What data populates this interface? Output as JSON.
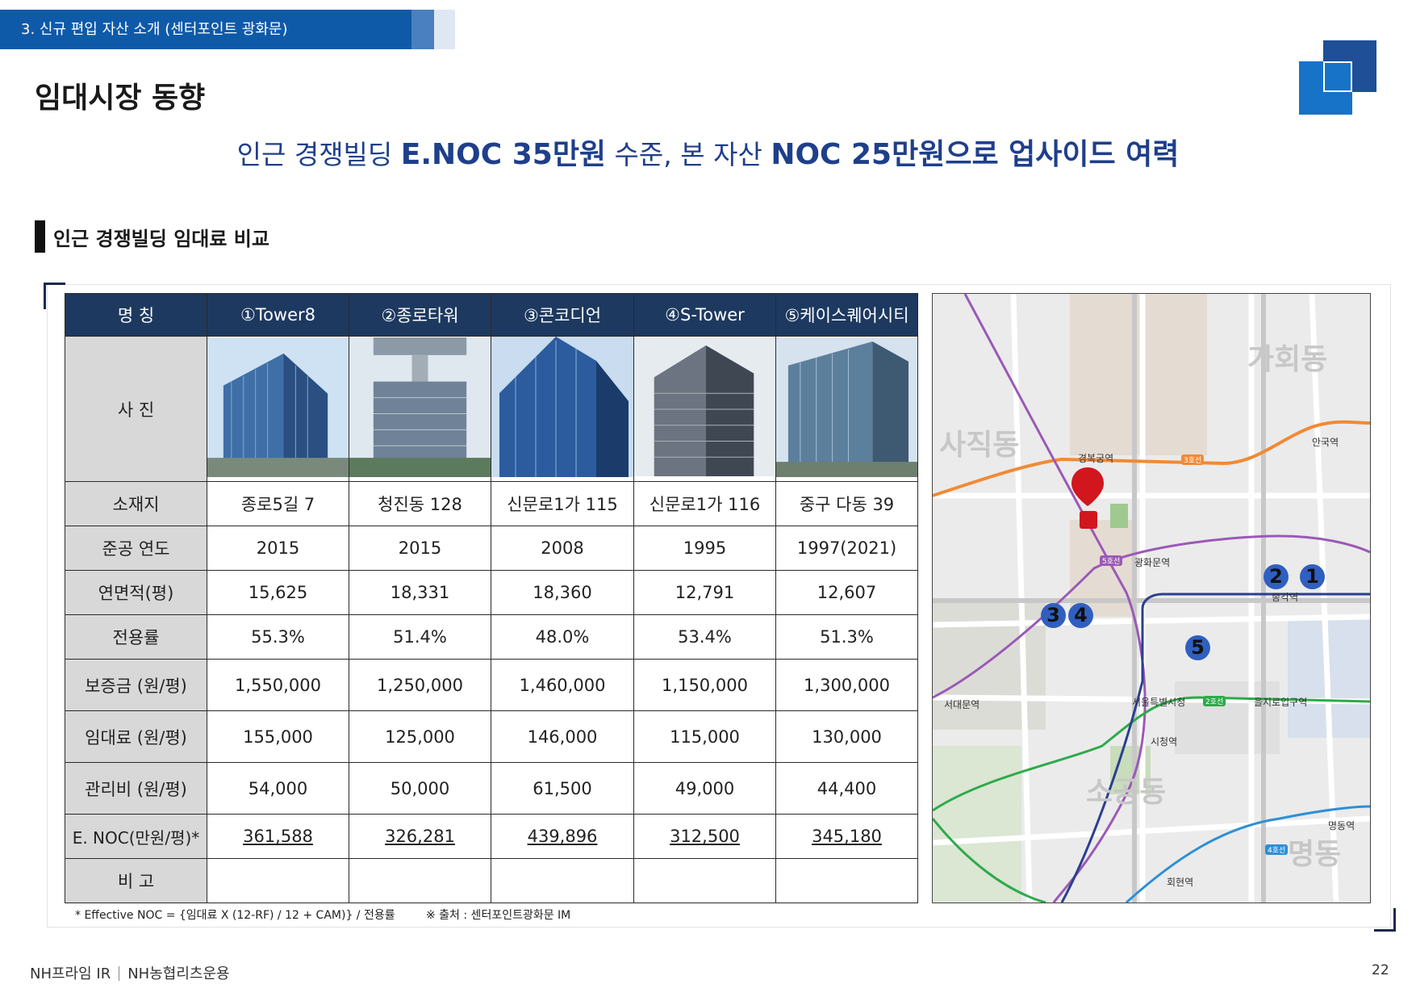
{
  "header": {
    "section_tab": "3. 신규 편입 자산 소개 (센터포인트 광화문)",
    "page_title": "임대시장 동향",
    "headline": {
      "part1": "인근 경쟁빌딩 ",
      "part2": "E.NOC 35만원",
      "part3": " 수준, 본 자산 ",
      "part4": "NOC 25만원으로 업사이드 여력"
    },
    "sub_title": "인근 경쟁빌딩 임대료 비교"
  },
  "table": {
    "header_label": "명 칭",
    "buildings": [
      "①Tower8",
      "②종로타워",
      "③콘코디언",
      "④S-Tower",
      "⑤케이스퀘어시티"
    ],
    "photo_label": "사 진",
    "rows": [
      {
        "label": "소재지",
        "values": [
          "종로5길 7",
          "청진동 128",
          "신문로1가 115",
          "신문로1가 116",
          "중구 다동 39"
        ]
      },
      {
        "label": "준공 연도",
        "values": [
          "2015",
          "2015",
          "2008",
          "1995",
          "1997(2021)"
        ]
      },
      {
        "label": "연면적(평)",
        "values": [
          "15,625",
          "18,331",
          "18,360",
          "12,791",
          "12,607"
        ]
      },
      {
        "label": "전용률",
        "values": [
          "55.3%",
          "51.4%",
          "48.0%",
          "53.4%",
          "51.3%"
        ]
      },
      {
        "label": "보증금 (원/평)",
        "values": [
          "1,550,000",
          "1,250,000",
          "1,460,000",
          "1,150,000",
          "1,300,000"
        ]
      },
      {
        "label": "임대료 (원/평)",
        "values": [
          "155,000",
          "125,000",
          "146,000",
          "115,000",
          "130,000"
        ]
      },
      {
        "label": "관리비 (원/평)",
        "values": [
          "54,000",
          "50,000",
          "61,500",
          "49,000",
          "44,400"
        ]
      },
      {
        "label": "E. NOC(만원/평)*",
        "values": [
          "361,588",
          "326,281",
          "439,896",
          "312,500",
          "345,180"
        ]
      },
      {
        "label": "비  고",
        "values": [
          "",
          "",
          "",
          "",
          ""
        ]
      }
    ]
  },
  "footnotes": {
    "formula": "* Effective NOC = {임대료 X (12-RF) / 12 + CAM)} / 전용률",
    "source": "※ 출처 : 센터포인트광화문 IM"
  },
  "map": {
    "district_labels": [
      "가회동",
      "사직동",
      "소공동",
      "명동"
    ],
    "station_labels": [
      "경복궁역",
      "안국역",
      "광화문역",
      "종각역",
      "서대문역",
      "서울특별시청",
      "을지로입구역",
      "시청역",
      "명동역",
      "회현역"
    ],
    "line_badges": [
      "3호선",
      "5호선",
      "2호선",
      "4호선"
    ],
    "markers": [
      "1",
      "2",
      "3",
      "4",
      "5"
    ],
    "colors": {
      "line3": "#f08a35",
      "line5": "#9b59b6",
      "line2": "#2eaa4a",
      "line4": "#2e8fd6",
      "line1": "#2b3f8f",
      "marker": "#2f5fc0",
      "pin": "#d2161e"
    }
  },
  "footer": {
    "company1": "NH프라임 IR",
    "company2": "NH농협리츠운용",
    "page_number": "22"
  }
}
